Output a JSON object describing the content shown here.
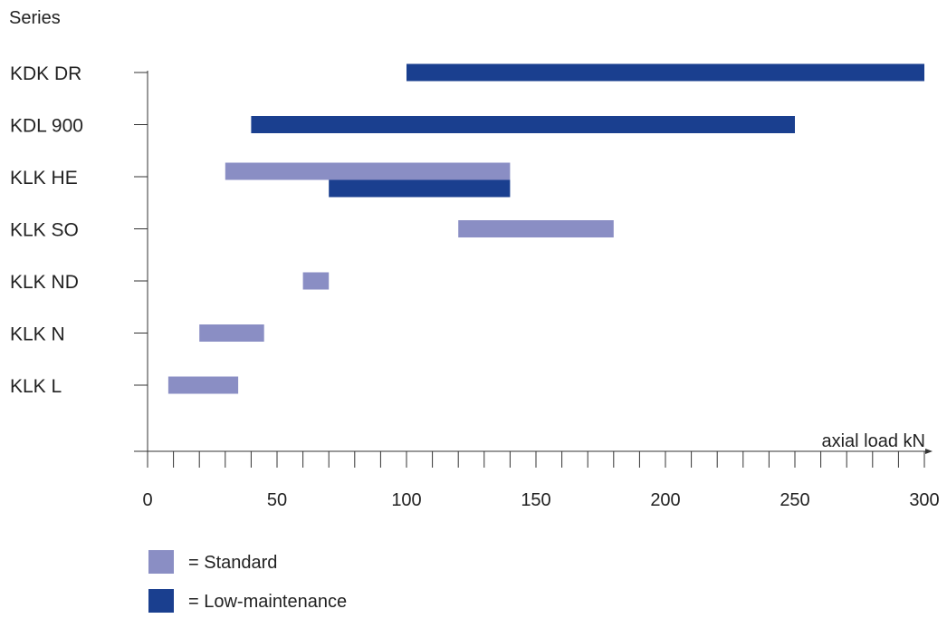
{
  "chart_data": {
    "type": "bar",
    "orientation": "horizontal-range",
    "ylabel": "Series",
    "xlabel": "axial load kN",
    "xlim": [
      0,
      300
    ],
    "x_ticks": [
      0,
      50,
      100,
      150,
      200,
      250,
      300
    ],
    "x_minor_step": 10,
    "grid": false,
    "categories": [
      "KDK DR",
      "KDL 900",
      "KLK HE",
      "KLK SO",
      "KLK ND",
      "KLK N",
      "KLK L"
    ],
    "series": [
      {
        "name": "Standard",
        "color": "#8a8ec4",
        "ranges": [
          {
            "category": "KLK HE",
            "from": 30,
            "to": 140
          },
          {
            "category": "KLK SO",
            "from": 120,
            "to": 180
          },
          {
            "category": "KLK ND",
            "from": 60,
            "to": 70
          },
          {
            "category": "KLK N",
            "from": 20,
            "to": 45
          },
          {
            "category": "KLK L",
            "from": 8,
            "to": 35
          }
        ]
      },
      {
        "name": "Low-maintenance",
        "color": "#1a3f8f",
        "ranges": [
          {
            "category": "KDK DR",
            "from": 100,
            "to": 300
          },
          {
            "category": "KDL 900",
            "from": 40,
            "to": 250
          },
          {
            "category": "KLK HE",
            "from": 70,
            "to": 140
          }
        ]
      }
    ],
    "legend": {
      "position": "bottom-left",
      "items": [
        {
          "label": "= Standard",
          "color": "#8a8ec4"
        },
        {
          "label": "= Low-maintenance",
          "color": "#1a3f8f"
        }
      ]
    }
  }
}
